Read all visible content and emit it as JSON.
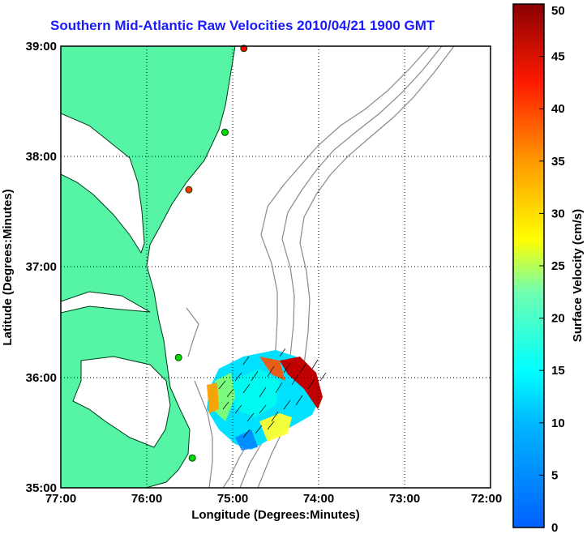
{
  "title": "Southern Mid-Atlantic Raw Velocities 2010/04/21 1900 GMT",
  "map": {
    "xlabel": "Longitude (Degrees:Minutes)",
    "ylabel": "Latitude (Degrees:Minutes)",
    "x_ticks": [
      "77:00",
      "76:00",
      "75:00",
      "74:00",
      "73:00",
      "72:00"
    ],
    "y_ticks": [
      "39:00",
      "38:00",
      "37:00",
      "36:00",
      "35:00"
    ],
    "lon_range": [
      -77,
      -72
    ],
    "lat_range": [
      35,
      39
    ],
    "land_color": "#55f5a5",
    "grid": "dotted",
    "stations": [
      {
        "lon": -74.87,
        "lat": 38.98,
        "color": "#ff0000"
      },
      {
        "lon": -75.09,
        "lat": 38.22,
        "color": "#00dd00"
      },
      {
        "lon": -75.51,
        "lat": 37.7,
        "color": "#ff3300"
      },
      {
        "lon": -75.63,
        "lat": 36.18,
        "color": "#00dd00"
      },
      {
        "lon": -75.47,
        "lat": 35.27,
        "color": "#00dd00"
      }
    ]
  },
  "colorbar": {
    "label": "Surface Velocity (cm/s)",
    "ticks": [
      "0",
      "5",
      "10",
      "15",
      "20",
      "25",
      "30",
      "35",
      "40",
      "45",
      "50"
    ],
    "range": [
      0,
      50
    ],
    "colormap": "jet"
  }
}
